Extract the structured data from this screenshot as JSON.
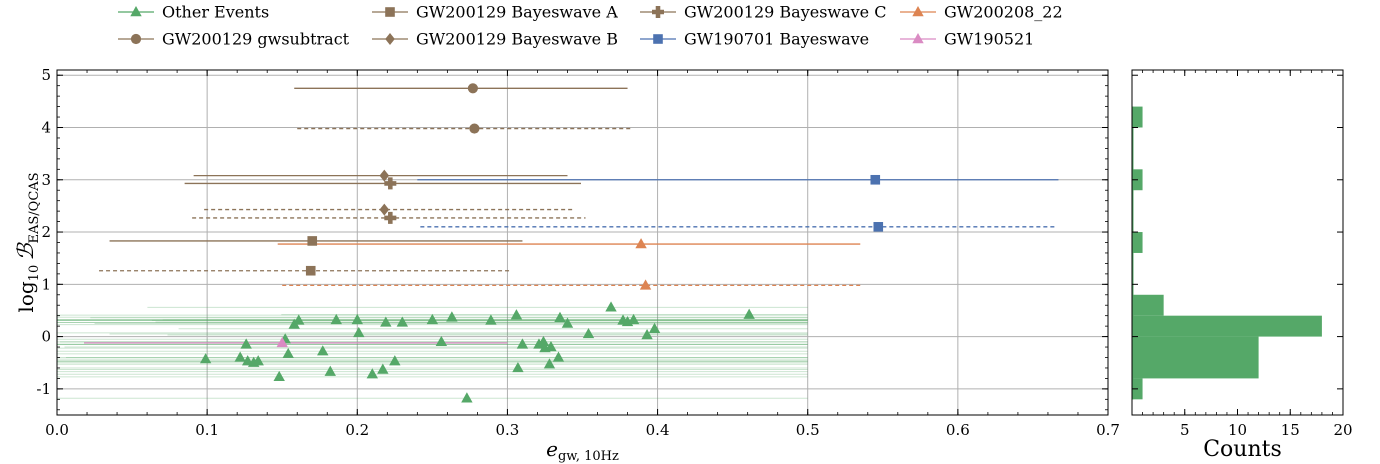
{
  "chart_data": [
    {
      "type": "scatter",
      "title": "",
      "xlabel": "e",
      "xlabel_sub": "gw, 10Hz",
      "ylabel_prefix": "log",
      "ylabel_prefix_sub": "10",
      "ylabel_main": "ℬ",
      "ylabel_sub": "EAS/QCAS",
      "xlim": [
        0.0,
        0.7
      ],
      "ylim": [
        -1.5,
        5.1
      ],
      "xticks": [
        0.0,
        0.1,
        0.2,
        0.3,
        0.4,
        0.5,
        0.6,
        0.7
      ],
      "xtick_labels": [
        "0.0",
        "0.1",
        "0.2",
        "0.3",
        "0.4",
        "0.5",
        "0.6",
        "0.7"
      ],
      "yticks": [
        -1,
        0,
        1,
        2,
        3,
        4,
        5
      ],
      "ytick_labels": [
        "-1",
        "0",
        "1",
        "2",
        "3",
        "4",
        "5"
      ],
      "grid": true,
      "legend_position": "top, above plot",
      "series": [
        {
          "name": "Other Events",
          "color": "#55a868",
          "marker": "triangle",
          "points": [
            {
              "x": 0.099,
              "y": -0.43
            },
            {
              "x": 0.122,
              "y": -0.4
            },
            {
              "x": 0.126,
              "y": -0.15
            },
            {
              "x": 0.127,
              "y": -0.47
            },
            {
              "x": 0.131,
              "y": -0.5
            },
            {
              "x": 0.134,
              "y": -0.47
            },
            {
              "x": 0.148,
              "y": -0.77
            },
            {
              "x": 0.152,
              "y": -0.05
            },
            {
              "x": 0.154,
              "y": -0.33
            },
            {
              "x": 0.158,
              "y": 0.23
            },
            {
              "x": 0.161,
              "y": 0.31
            },
            {
              "x": 0.177,
              "y": -0.28
            },
            {
              "x": 0.182,
              "y": -0.67
            },
            {
              "x": 0.186,
              "y": 0.32
            },
            {
              "x": 0.2,
              "y": 0.32
            },
            {
              "x": 0.201,
              "y": 0.07
            },
            {
              "x": 0.21,
              "y": -0.72
            },
            {
              "x": 0.217,
              "y": -0.63
            },
            {
              "x": 0.219,
              "y": 0.27
            },
            {
              "x": 0.225,
              "y": -0.47
            },
            {
              "x": 0.23,
              "y": 0.27
            },
            {
              "x": 0.25,
              "y": 0.32
            },
            {
              "x": 0.256,
              "y": -0.1
            },
            {
              "x": 0.263,
              "y": 0.37
            },
            {
              "x": 0.273,
              "y": -1.18
            },
            {
              "x": 0.289,
              "y": 0.31
            },
            {
              "x": 0.306,
              "y": 0.41
            },
            {
              "x": 0.307,
              "y": -0.6
            },
            {
              "x": 0.31,
              "y": -0.15
            },
            {
              "x": 0.321,
              "y": -0.15
            },
            {
              "x": 0.324,
              "y": -0.1
            },
            {
              "x": 0.325,
              "y": -0.22
            },
            {
              "x": 0.328,
              "y": -0.53
            },
            {
              "x": 0.329,
              "y": -0.2
            },
            {
              "x": 0.334,
              "y": -0.4
            },
            {
              "x": 0.335,
              "y": 0.36
            },
            {
              "x": 0.34,
              "y": 0.25
            },
            {
              "x": 0.354,
              "y": 0.05
            },
            {
              "x": 0.369,
              "y": 0.56
            },
            {
              "x": 0.377,
              "y": 0.31
            },
            {
              "x": 0.38,
              "y": 0.28
            },
            {
              "x": 0.384,
              "y": 0.32
            },
            {
              "x": 0.393,
              "y": 0.03
            },
            {
              "x": 0.398,
              "y": 0.15
            },
            {
              "x": 0.461,
              "y": 0.42
            }
          ]
        },
        {
          "name": "GW200129 gwsubtract",
          "color": "#8c7358",
          "marker": "circle",
          "points": [
            {
              "x": 0.277,
              "y": 4.75,
              "xerr": [
                0.158,
                0.38
              ],
              "style": "solid"
            },
            {
              "x": 0.278,
              "y": 3.98,
              "xerr": [
                0.16,
                0.383
              ],
              "style": "dashed"
            }
          ]
        },
        {
          "name": "GW200129 Bayeswave A",
          "color": "#8c7358",
          "marker": "square",
          "points": [
            {
              "x": 0.17,
              "y": 1.83,
              "xerr": [
                0.035,
                0.31
              ],
              "style": "solid"
            },
            {
              "x": 0.169,
              "y": 1.26,
              "xerr": [
                0.028,
                0.302
              ],
              "style": "dashed"
            }
          ]
        },
        {
          "name": "GW200129 Bayeswave B",
          "color": "#8c7358",
          "marker": "diamond",
          "points": [
            {
              "x": 0.218,
              "y": 3.08,
              "xerr": [
                0.091,
                0.34
              ],
              "style": "solid"
            },
            {
              "x": 0.218,
              "y": 2.43,
              "xerr": [
                0.098,
                0.345
              ],
              "style": "dashed"
            }
          ]
        },
        {
          "name": "GW200129 Bayeswave C",
          "color": "#8c7358",
          "marker": "plus",
          "points": [
            {
              "x": 0.222,
              "y": 2.93,
              "xerr": [
                0.085,
                0.349
              ],
              "style": "solid"
            },
            {
              "x": 0.222,
              "y": 2.27,
              "xerr": [
                0.09,
                0.352
              ],
              "style": "dashed"
            }
          ]
        },
        {
          "name": "GW190701 Bayeswave",
          "color": "#4c72b0",
          "marker": "square",
          "points": [
            {
              "x": 0.545,
              "y": 3.0,
              "xerr": [
                0.24,
                0.667
              ],
              "style": "solid"
            },
            {
              "x": 0.547,
              "y": 2.1,
              "xerr": [
                0.242,
                0.665
              ],
              "style": "dashed"
            }
          ]
        },
        {
          "name": "GW200208_22",
          "color": "#dd8452",
          "marker": "triangle",
          "points": [
            {
              "x": 0.389,
              "y": 1.77,
              "xerr": [
                0.147,
                0.535
              ],
              "style": "solid"
            },
            {
              "x": 0.392,
              "y": 0.98,
              "xerr": [
                0.15,
                0.535
              ],
              "style": "dashed"
            }
          ]
        },
        {
          "name": "GW190521",
          "color": "#da8bc3",
          "marker": "triangle",
          "points": [
            {
              "x": 0.15,
              "y": -0.12,
              "xerr": [
                0.018,
                0.3
              ],
              "style": "solid"
            }
          ]
        }
      ]
    },
    {
      "type": "histogram",
      "orientation": "horizontal",
      "xlabel": "Counts",
      "xlim": [
        0,
        20
      ],
      "xticks": [
        5,
        10,
        15,
        20
      ],
      "xtick_labels": [
        "5",
        "10",
        "15",
        "20"
      ],
      "color": "#55a868",
      "bins": [
        {
          "y0": -1.2,
          "y1": -0.8,
          "count": 1
        },
        {
          "y0": -0.8,
          "y1": -0.4,
          "count": 12
        },
        {
          "y0": -0.4,
          "y1": 0.0,
          "count": 12
        },
        {
          "y0": 0.0,
          "y1": 0.4,
          "count": 18
        },
        {
          "y0": 0.4,
          "y1": 0.8,
          "count": 3
        },
        {
          "y0": 1.6,
          "y1": 2.0,
          "count": 1
        },
        {
          "y0": 2.8,
          "y1": 3.2,
          "count": 1
        },
        {
          "y0": 4.0,
          "y1": 4.4,
          "count": 1
        }
      ]
    }
  ]
}
